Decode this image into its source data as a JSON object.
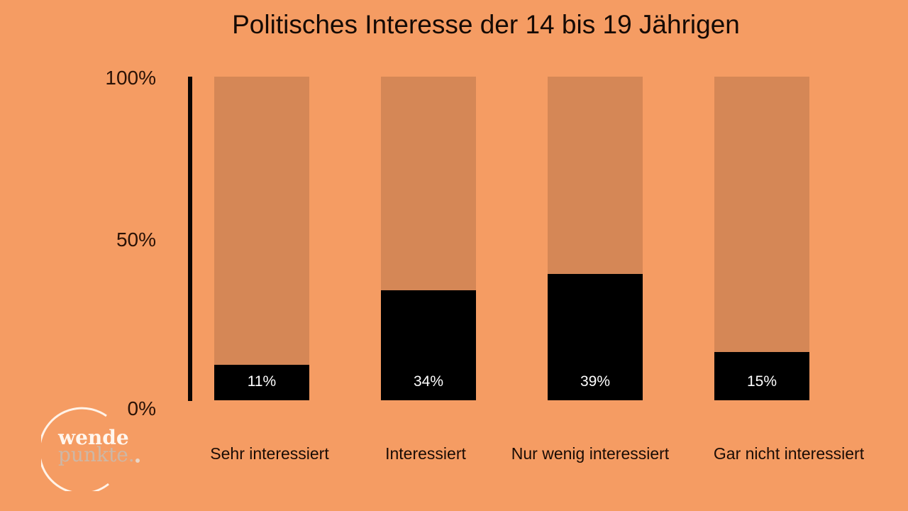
{
  "chart_data": {
    "type": "bar",
    "title": "Politisches Interesse der 14 bis 19 Jährigen",
    "categories": [
      "Sehr interessiert",
      "Interessiert",
      "Nur wenig interessiert",
      "Gar nicht interessiert"
    ],
    "values": [
      11,
      34,
      39,
      15
    ],
    "value_labels": [
      "11%",
      "34%",
      "39%",
      "15%"
    ],
    "ylim": [
      0,
      100
    ],
    "yticks": [
      {
        "value": 100,
        "label": "100%"
      },
      {
        "value": 50,
        "label": "50%"
      },
      {
        "value": 0,
        "label": "0%"
      }
    ],
    "xlabel": "",
    "ylabel": "",
    "grid": false,
    "colors": {
      "background": "#f59c63",
      "track": "#d58756",
      "fill": "#000000",
      "label": "#ffffff"
    }
  },
  "logo": {
    "line1": "wende",
    "line2": "punkte."
  }
}
